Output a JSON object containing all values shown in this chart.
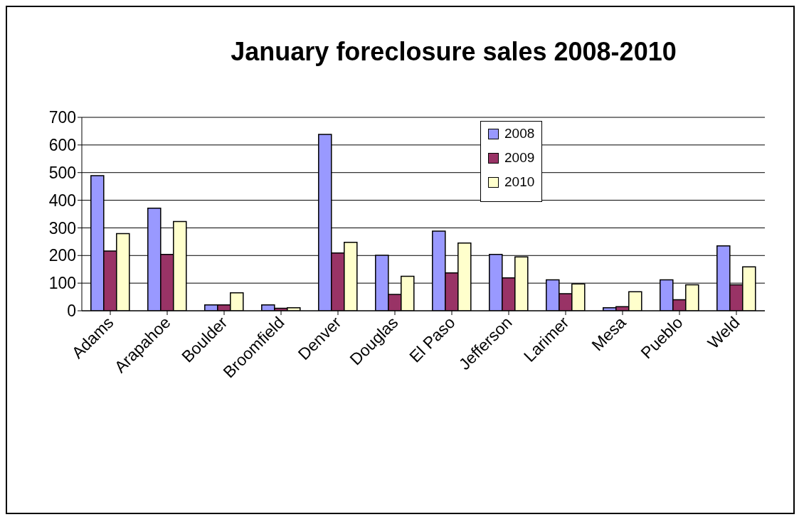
{
  "chart_data": {
    "type": "bar",
    "title": "January foreclosure sales 2008-2010",
    "categories": [
      "Adams",
      "Arapahoe",
      "Boulder",
      "Broomfield",
      "Denver",
      "Douglas",
      "El Paso",
      "Jefferson",
      "Larimer",
      "Mesa",
      "Pueblo",
      "Weld"
    ],
    "series": [
      {
        "name": "2008",
        "color": "#9999ff",
        "values": [
          489,
          371,
          21,
          21,
          638,
          201,
          288,
          204,
          112,
          11,
          112,
          235
        ]
      },
      {
        "name": "2009",
        "color": "#993366",
        "values": [
          216,
          204,
          21,
          9,
          209,
          59,
          137,
          119,
          62,
          15,
          40,
          94
        ]
      },
      {
        "name": "2010",
        "color": "#ffffcc",
        "values": [
          279,
          323,
          65,
          11,
          248,
          125,
          245,
          195,
          97,
          69,
          94,
          159
        ]
      }
    ],
    "ylim": [
      0,
      700
    ],
    "yticks": [
      0,
      100,
      200,
      300,
      400,
      500,
      600,
      700
    ],
    "grid": "y",
    "legend": "top right"
  }
}
